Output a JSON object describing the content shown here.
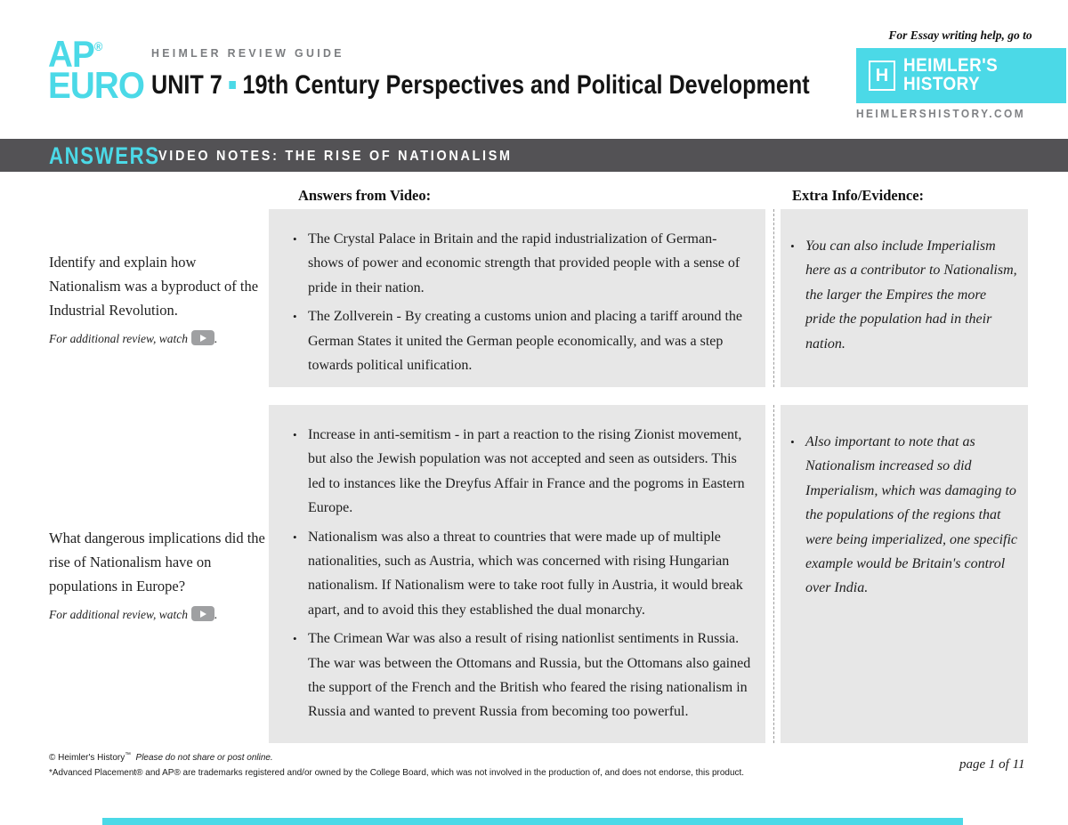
{
  "colors": {
    "accent_cyan": "#4bd9e7",
    "banner_gray": "#535255",
    "cell_gray": "#e7e7e7"
  },
  "header": {
    "logo_line1": "AP",
    "logo_reg": "®",
    "logo_line2": "EURO",
    "kicker": "HEIMLER REVIEW GUIDE",
    "title_unit": "UNIT 7",
    "title_rest": "19th Century Perspectives and Political Development",
    "essay_help": "For Essay writing help, go to",
    "brand_badge_letter": "H",
    "brand_name_line1": "HEIMLER'S",
    "brand_name_line2": "HISTORY",
    "brand_url": "HEIMLERSHISTORY.COM"
  },
  "banner": {
    "answers_label": "ANSWERS",
    "title": "VIDEO NOTES: THE RISE OF NATIONALISM"
  },
  "columns": {
    "answers_header": "Answers from Video:",
    "extra_header": "Extra Info/Evidence:"
  },
  "rows": [
    {
      "question": "Identify and explain how Nationalism was a byproduct of the Industrial Revolution.",
      "review_note": "For additional review, watch",
      "review_suffix": ".",
      "answers": [
        "The Crystal Palace in Britain and the rapid industrialization of German- shows of power and economic strength that provided people with a sense of pride in their nation.",
        "The Zollverein - By creating a customs union and placing a tariff around the German States it united the German people economically, and was a step towards political unification."
      ],
      "extra": [
        "You can also include Imperialism here as a contributor to Nationalism, the larger the Empires the more pride the population had in their nation."
      ]
    },
    {
      "question": "What dangerous implications did the rise of Nationalism have on populations in Europe?",
      "review_note": "For additional review, watch",
      "review_suffix": ".",
      "answers": [
        "Increase in anti-semitism - in part a reaction to the rising Zionist movement, but also the Jewish population was not accepted and seen as outsiders.  This led to instances like the Dreyfus Affair in France and the pogroms in Eastern Europe.",
        "Nationalism was also a threat to countries that were made up of multiple nationalities, such as Austria, which was concerned with rising Hungarian nationalism.  If Nationalism were to take root fully in Austria, it would break apart, and to avoid this they established the dual monarchy.",
        "The Crimean War was also a result of rising nationlist sentiments in Russia. The war was between the Ottomans and Russia, but the Ottomans also gained the support of the French and the British who feared the rising nationalism in Russia and wanted to prevent Russia from becoming too powerful."
      ],
      "extra": [
        "Also important to note that as Nationalism increased so did Imperialism, which was damaging to the populations of the regions that were being imperialized, one specific example would be Britain's control over India."
      ]
    }
  ],
  "footer": {
    "copyright": "© Heimler's History",
    "trademark_sup": "™",
    "share_note": "Please do not share or post online.",
    "trademark_line": "*Advanced Placement® and AP® are trademarks registered and/or owned by the College Board, which was not involved in the production of, and does not endorse, this product.",
    "page_number": "page 1 of 11"
  }
}
